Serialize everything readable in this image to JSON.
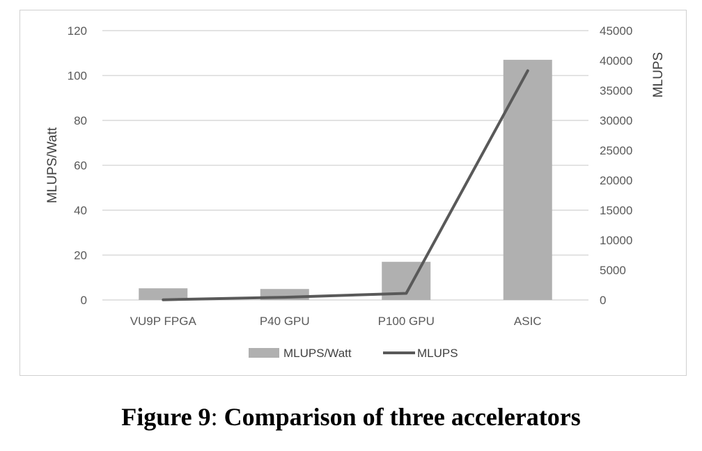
{
  "chart_data": {
    "type": "bar",
    "categories": [
      "VU9P FPGA",
      "P40 GPU",
      "P100 GPU",
      "ASIC"
    ],
    "series": [
      {
        "name": "MLUPS/Watt",
        "type": "bar",
        "axis": "left",
        "color": "#b0b0b0",
        "values": [
          5.2,
          4.9,
          17,
          107
        ]
      },
      {
        "name": "MLUPS",
        "type": "line",
        "axis": "right",
        "color": "#595959",
        "values": [
          30,
          450,
          1100,
          38300
        ]
      }
    ],
    "ylabel": "MLUPS/Watt",
    "y2label": "MLUPS",
    "ylim": [
      0,
      120
    ],
    "y2lim": [
      0,
      45000
    ],
    "yticks": [
      "0",
      "20",
      "40",
      "60",
      "80",
      "100",
      "120"
    ],
    "y2ticks": [
      "0",
      "5000",
      "10000",
      "15000",
      "20000",
      "25000",
      "30000",
      "35000",
      "40000",
      "45000"
    ],
    "grid": "horizontal",
    "legend_position": "bottom"
  },
  "caption": {
    "label": "Figure 9",
    "separator": ":",
    "text": " Comparison of three accelerators"
  }
}
